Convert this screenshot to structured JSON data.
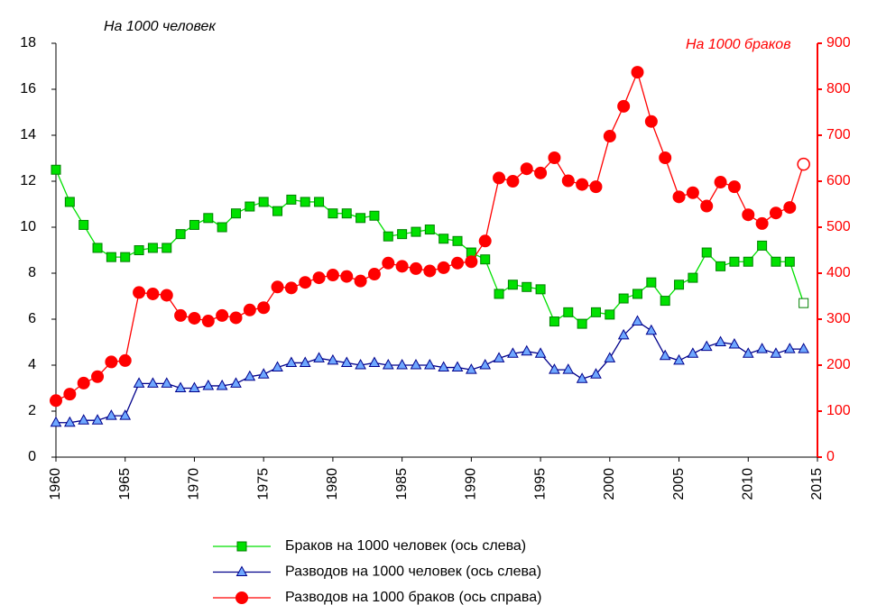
{
  "chart_data": {
    "type": "line",
    "y_title": "На 1000 человек",
    "y2_title": "На 1000 браков",
    "x": [
      1960,
      1961,
      1962,
      1963,
      1964,
      1965,
      1966,
      1967,
      1968,
      1969,
      1970,
      1971,
      1972,
      1973,
      1974,
      1975,
      1976,
      1977,
      1978,
      1979,
      1980,
      1981,
      1982,
      1983,
      1984,
      1985,
      1986,
      1987,
      1988,
      1989,
      1990,
      1991,
      1992,
      1993,
      1994,
      1995,
      1996,
      1997,
      1998,
      1999,
      2000,
      2001,
      2002,
      2003,
      2004,
      2005,
      2006,
      2007,
      2008,
      2009,
      2010,
      2011,
      2012,
      2013,
      2014
    ],
    "xlim": [
      1960,
      2015
    ],
    "xticks": [
      1960,
      1965,
      1970,
      1975,
      1980,
      1985,
      1990,
      1995,
      2000,
      2005,
      2010,
      2015
    ],
    "ylim": [
      0,
      18
    ],
    "yticks": [
      0,
      2,
      4,
      6,
      8,
      10,
      12,
      14,
      16,
      18
    ],
    "y2lim": [
      0,
      900
    ],
    "y2ticks": [
      0,
      100,
      200,
      300,
      400,
      500,
      600,
      700,
      800,
      900
    ],
    "y2color": "#ff0000",
    "series": [
      {
        "name": "Браков на 1000 человек (ось слева)",
        "color": "#00e000",
        "marker": "square",
        "hollow_last": true,
        "values": [
          12.5,
          11.1,
          10.1,
          9.1,
          8.7,
          8.7,
          9.0,
          9.1,
          9.1,
          9.7,
          10.1,
          10.4,
          10.0,
          10.6,
          10.9,
          11.1,
          10.7,
          11.2,
          11.1,
          11.1,
          10.6,
          10.6,
          10.4,
          10.5,
          9.6,
          9.7,
          9.8,
          9.9,
          9.5,
          9.4,
          8.9,
          8.6,
          7.1,
          7.5,
          7.4,
          7.3,
          5.9,
          6.3,
          5.8,
          6.3,
          6.2,
          6.9,
          7.1,
          7.6,
          6.8,
          7.5,
          7.8,
          8.9,
          8.3,
          8.5,
          8.5,
          9.2,
          8.5,
          8.5,
          6.7
        ]
      },
      {
        "name": "Разводов на 1000  человек (ось слева)",
        "color": "#00008b",
        "marker": "triangle",
        "hollow_last": false,
        "values": [
          1.5,
          1.5,
          1.6,
          1.6,
          1.8,
          1.8,
          3.2,
          3.2,
          3.2,
          3.0,
          3.0,
          3.1,
          3.1,
          3.2,
          3.5,
          3.6,
          3.9,
          4.1,
          4.1,
          4.3,
          4.2,
          4.1,
          4.0,
          4.1,
          4.0,
          4.0,
          4.0,
          4.0,
          3.9,
          3.9,
          3.8,
          4.0,
          4.3,
          4.5,
          4.6,
          4.5,
          3.8,
          3.8,
          3.4,
          3.6,
          4.3,
          5.3,
          5.9,
          5.5,
          4.4,
          4.2,
          4.5,
          4.8,
          5.0,
          4.9,
          4.5,
          4.7,
          4.5,
          4.7,
          4.7
        ]
      },
      {
        "name": "Разводов на 1000 браков (ось справа)",
        "color": "#ff0000",
        "marker": "circle",
        "axis": "y2",
        "hollow_last": true,
        "values": [
          123,
          137,
          161,
          175,
          207,
          210,
          358,
          355,
          352,
          308,
          302,
          296,
          308,
          303,
          320,
          325,
          370,
          368,
          380,
          390,
          396,
          393,
          383,
          398,
          422,
          415,
          410,
          405,
          412,
          422,
          425,
          470,
          607,
          600,
          627,
          618,
          651,
          601,
          593,
          588,
          698,
          763,
          837,
          730,
          651,
          566,
          575,
          546,
          598,
          588,
          527,
          508,
          531,
          543,
          637
        ]
      }
    ]
  }
}
